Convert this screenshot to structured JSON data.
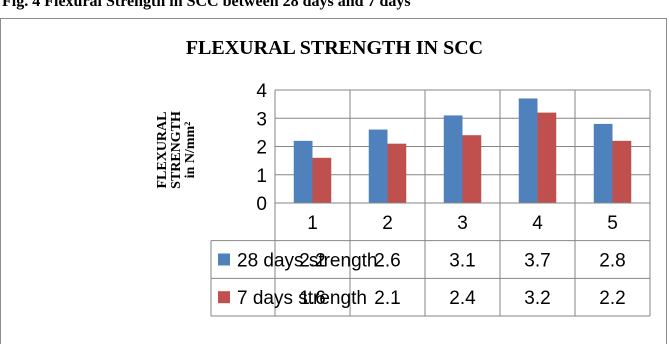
{
  "page": {
    "top_caption": "Fig. 4 Flexural Strength in SCC between 28 days and 7 days"
  },
  "chart_data": {
    "type": "bar",
    "title": "FLEXURAL STRENGTH IN SCC",
    "ylabel_lines": [
      "FLEXURAL",
      "STRENGTH",
      "in N/mm²"
    ],
    "ylim": [
      0,
      4
    ],
    "yticks": [
      "0",
      "1",
      "2",
      "3",
      "4"
    ],
    "grid": true,
    "legend": "data-table",
    "categories": [
      "1",
      "2",
      "3",
      "4",
      "5"
    ],
    "series": [
      {
        "name": "28 days strength",
        "color": "#4f81bd",
        "values": [
          2.2,
          2.6,
          3.1,
          3.7,
          2.8
        ],
        "labels": [
          "2.2",
          "2.6",
          "3.1",
          "3.7",
          "2.8"
        ]
      },
      {
        "name": "7 days strength",
        "color": "#c0504d",
        "values": [
          1.6,
          2.1,
          2.4,
          3.2,
          2.2
        ],
        "labels": [
          "1.6",
          "2.1",
          "2.4",
          "3.2",
          "2.2"
        ]
      }
    ]
  }
}
